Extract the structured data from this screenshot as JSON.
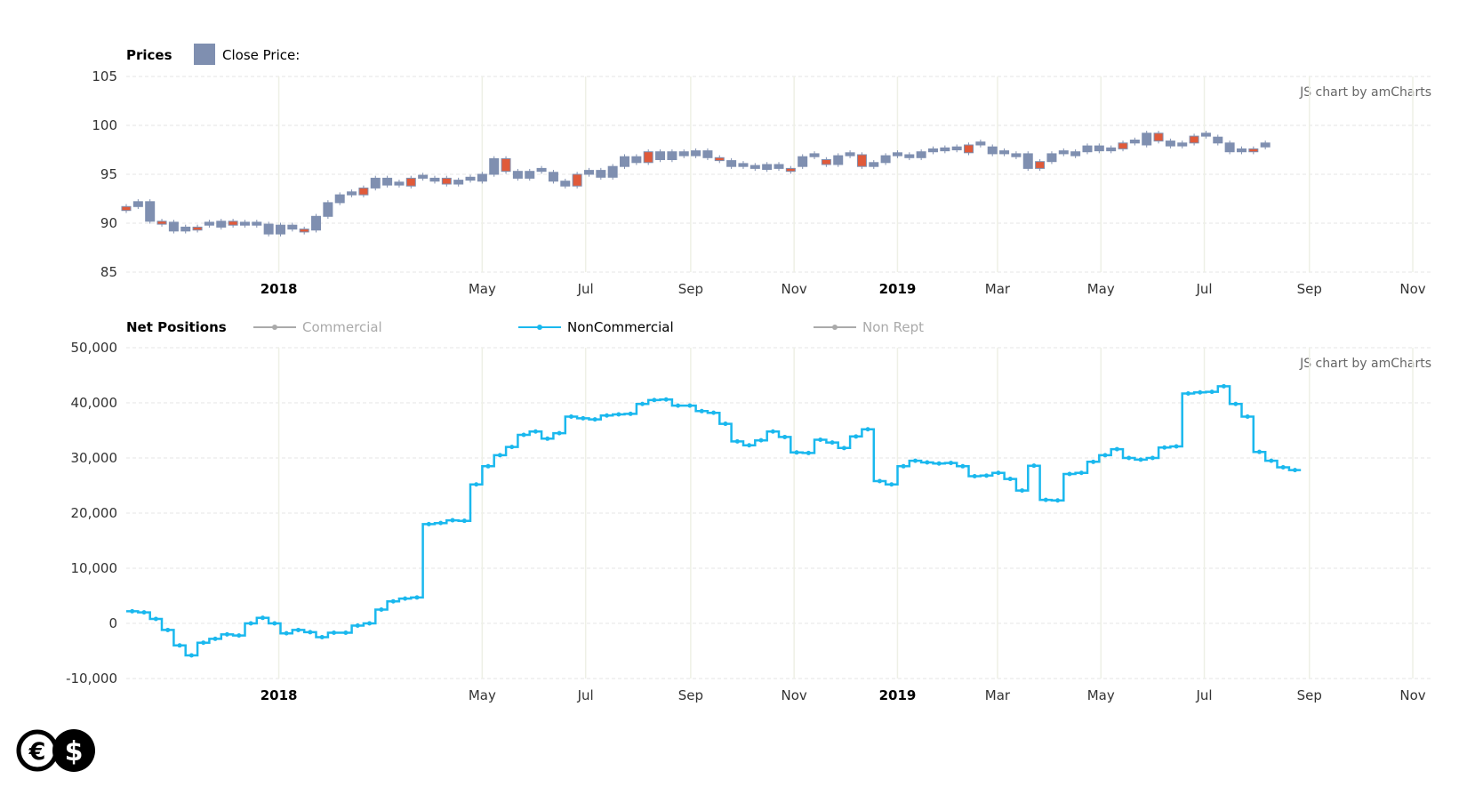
{
  "chart_data": [
    {
      "type": "candlestick",
      "title": "Prices",
      "legend": [
        {
          "name": "Close Price:",
          "color": "#7f8fb0"
        }
      ],
      "credit": "JS chart by amCharts",
      "yaxis_ticks": [
        "105",
        "100",
        "95",
        "90",
        "85"
      ],
      "ylim": [
        85,
        105
      ],
      "xaxis_ticks": [
        {
          "label": "2018",
          "date": "2018-01-01",
          "bold": true
        },
        {
          "label": "May",
          "date": "2018-05-01"
        },
        {
          "label": "Jul",
          "date": "2018-07-01"
        },
        {
          "label": "Sep",
          "date": "2018-09-01"
        },
        {
          "label": "Nov",
          "date": "2018-11-01"
        },
        {
          "label": "2019",
          "date": "2019-01-01",
          "bold": true
        },
        {
          "label": "Mar",
          "date": "2019-03-01"
        },
        {
          "label": "May",
          "date": "2019-05-01"
        },
        {
          "label": "Jul",
          "date": "2019-07-01"
        },
        {
          "label": "Sep",
          "date": "2019-09-01"
        },
        {
          "label": "Nov",
          "date": "2019-11-01"
        }
      ],
      "xlim": [
        "2017-10-03",
        "2019-11-12"
      ],
      "up_color": "#7f8fb0",
      "down_color": "#e05a3a",
      "series_start": "2017-10-03",
      "close": [
        91.7,
        92.2,
        90.2,
        90.1,
        89.2,
        89.6,
        89.8,
        89.6,
        90.2,
        89.8,
        89.8,
        89.9,
        88.9,
        89.8,
        89.4,
        89.3,
        90.7,
        92.1,
        92.9,
        92.9,
        93.6,
        94.6,
        93.9,
        93.8,
        94.6,
        94.3,
        94.6,
        94.0,
        94.4,
        94.3,
        95.0,
        96.6,
        95.3,
        94.6,
        95.3,
        95.2,
        94.3,
        93.8,
        95.0,
        95.4,
        94.7,
        95.8,
        96.8,
        96.2,
        97.3,
        96.5,
        97.3,
        96.9,
        97.4,
        96.7,
        96.4,
        95.8,
        95.6,
        95.5,
        96.0,
        95.6,
        95.8,
        96.8,
        96.5,
        96.0,
        96.9,
        97.0,
        95.8,
        96.2,
        96.9,
        96.7,
        96.7,
        97.3,
        97.4,
        97.5,
        97.2,
        98.0,
        97.8,
        97.1,
        96.8,
        97.1,
        95.6,
        96.3,
        97.1,
        96.9,
        97.3,
        97.9,
        97.4,
        97.6,
        98.2,
        98.0,
        99.2,
        98.4,
        97.9,
        98.2,
        98.9,
        98.8,
        98.2,
        97.3,
        97.6,
        97.8,
        98.2
      ],
      "down_weeks": [
        0,
        3,
        6,
        9,
        15,
        20,
        24,
        27,
        32,
        38,
        44,
        50,
        56,
        59,
        62,
        71,
        77,
        84,
        87,
        90,
        95
      ]
    },
    {
      "type": "step-line",
      "title": "Net Positions",
      "credit": "JS chart by amCharts",
      "legend": [
        {
          "name": "Commercial",
          "visible": false,
          "color": "#aaaaaa"
        },
        {
          "name": "NonCommercial",
          "visible": true,
          "color": "#1ab8ee"
        },
        {
          "name": "Non Rept",
          "visible": false,
          "color": "#aaaaaa"
        }
      ],
      "yaxis_ticks": [
        "50,000",
        "40,000",
        "30,000",
        "20,000",
        "10,000",
        "0",
        "-10,000"
      ],
      "ylim": [
        -10000,
        50000
      ],
      "xaxis_ticks": [
        {
          "label": "2018",
          "date": "2018-01-01",
          "bold": true
        },
        {
          "label": "May",
          "date": "2018-05-01"
        },
        {
          "label": "Jul",
          "date": "2018-07-01"
        },
        {
          "label": "Sep",
          "date": "2018-09-01"
        },
        {
          "label": "Nov",
          "date": "2018-11-01"
        },
        {
          "label": "2019",
          "date": "2019-01-01",
          "bold": true
        },
        {
          "label": "Mar",
          "date": "2019-03-01"
        },
        {
          "label": "May",
          "date": "2019-05-01"
        },
        {
          "label": "Jul",
          "date": "2019-07-01"
        },
        {
          "label": "Sep",
          "date": "2019-09-01"
        },
        {
          "label": "Nov",
          "date": "2019-11-01"
        }
      ],
      "xlim": [
        "2017-10-03",
        "2019-11-12"
      ],
      "series": [
        {
          "name": "NonCommercial",
          "start": "2017-10-03",
          "values": [
            2200,
            2000,
            800,
            -1200,
            -4000,
            -5800,
            -3500,
            -2800,
            -2000,
            -2200,
            0,
            1000,
            0,
            -1800,
            -1200,
            -1600,
            -2500,
            -1700,
            -1700,
            -400,
            0,
            2500,
            4000,
            4500,
            4700,
            18000,
            18200,
            18700,
            18600,
            25200,
            28500,
            30500,
            32000,
            34200,
            34800,
            33500,
            34500,
            37500,
            37200,
            37000,
            37700,
            37900,
            38000,
            39800,
            40500,
            40600,
            39500,
            39500,
            38500,
            38200,
            36200,
            33000,
            32300,
            33200,
            34800,
            33800,
            31000,
            30900,
            33300,
            32800,
            31800,
            33900,
            35200,
            25800,
            25200,
            28500,
            29500,
            29200,
            29000,
            29100,
            28500,
            26700,
            26800,
            27300,
            26200,
            24100,
            28600,
            22400,
            22300,
            27100,
            27300,
            29300,
            30500,
            31600,
            30000,
            29700,
            30000,
            31900,
            32100,
            41700,
            41900,
            42000,
            43000,
            39800,
            37500,
            31100,
            29500,
            28300,
            27800
          ]
        }
      ]
    }
  ]
}
